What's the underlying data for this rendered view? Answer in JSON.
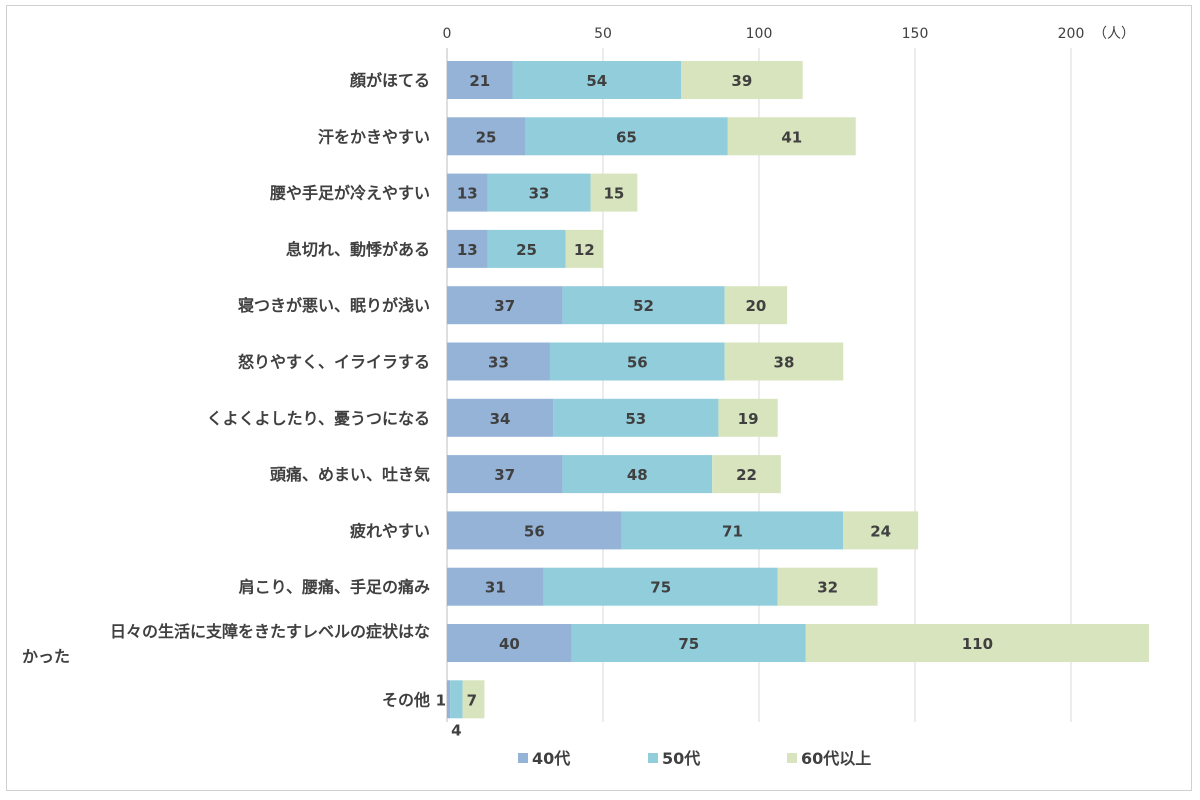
{
  "chart_data": {
    "type": "bar",
    "orientation": "horizontal",
    "stacked": true,
    "unit": "（人）",
    "xlim": [
      0,
      225
    ],
    "x_ticks": [
      0,
      50,
      100,
      150,
      200
    ],
    "x_tick_labels": [
      "0",
      "50",
      "100",
      "150",
      "200"
    ],
    "grid": true,
    "legend_position": "bottom",
    "categories": [
      [
        "顔がほてる"
      ],
      [
        "汗をかきやすい"
      ],
      [
        "腰や手足が冷えやすい"
      ],
      [
        "息切れ、動悸がある"
      ],
      [
        "寝つきが悪い、眠りが浅い"
      ],
      [
        "怒りやすく、イライラする"
      ],
      [
        "くよくよしたり、憂うつになる"
      ],
      [
        "頭痛、めまい、吐き気"
      ],
      [
        "疲れやすい"
      ],
      [
        "肩こり、腰痛、手足の痛み"
      ],
      [
        "日々の生活に支障をきたすレベルの症状はな",
        "かった"
      ],
      [
        "その他"
      ]
    ],
    "series": [
      {
        "name": "40代",
        "color": "#95b3d7",
        "values": [
          21,
          25,
          13,
          13,
          37,
          33,
          34,
          37,
          56,
          31,
          40,
          1
        ]
      },
      {
        "name": "50代",
        "color": "#92cddc",
        "values": [
          54,
          65,
          33,
          25,
          52,
          56,
          53,
          48,
          71,
          75,
          75,
          4
        ]
      },
      {
        "name": "60代以上",
        "color": "#d7e4bd",
        "values": [
          39,
          41,
          15,
          12,
          20,
          38,
          19,
          22,
          24,
          32,
          110,
          7
        ]
      }
    ]
  }
}
